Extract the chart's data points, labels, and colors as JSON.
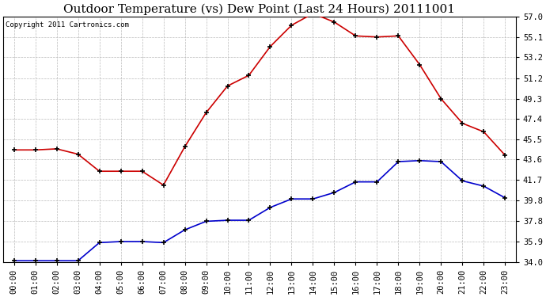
{
  "title": "Outdoor Temperature (vs) Dew Point (Last 24 Hours) 20111001",
  "copyright_text": "Copyright 2011 Cartronics.com",
  "x_labels": [
    "00:00",
    "01:00",
    "02:00",
    "03:00",
    "04:00",
    "05:00",
    "06:00",
    "07:00",
    "08:00",
    "09:00",
    "10:00",
    "11:00",
    "12:00",
    "13:00",
    "14:00",
    "15:00",
    "16:00",
    "17:00",
    "18:00",
    "19:00",
    "20:00",
    "21:00",
    "22:00",
    "23:00"
  ],
  "temp_data": [
    44.5,
    44.5,
    44.6,
    44.1,
    42.5,
    42.5,
    42.5,
    41.2,
    44.8,
    48.0,
    50.5,
    51.5,
    54.2,
    56.2,
    57.3,
    56.5,
    55.2,
    55.1,
    55.2,
    52.5,
    49.3,
    47.0,
    46.2,
    44.0
  ],
  "dew_data": [
    34.1,
    34.1,
    34.1,
    34.1,
    35.8,
    35.9,
    35.9,
    35.8,
    37.0,
    37.8,
    37.9,
    37.9,
    39.1,
    39.9,
    39.9,
    40.5,
    41.5,
    41.5,
    43.4,
    43.5,
    43.4,
    41.6,
    41.1,
    40.0
  ],
  "temp_color": "#cc0000",
  "dew_color": "#0000cc",
  "bg_color": "#ffffff",
  "grid_color": "#bbbbbb",
  "ylim_min": 34.0,
  "ylim_max": 57.0,
  "yticks": [
    34.0,
    35.9,
    37.8,
    39.8,
    41.7,
    43.6,
    45.5,
    47.4,
    49.3,
    51.2,
    53.2,
    55.1,
    57.0
  ],
  "ytick_labels": [
    "34.0",
    "35.9",
    "37.8",
    "39.8",
    "41.7",
    "43.6",
    "45.5",
    "47.4",
    "49.3",
    "51.2",
    "53.2",
    "55.1",
    "57.0"
  ],
  "marker": "+",
  "markersize": 5,
  "markeredgewidth": 1.2,
  "linewidth": 1.2,
  "title_fontsize": 11,
  "copyright_fontsize": 6.5,
  "tick_fontsize": 7.5
}
